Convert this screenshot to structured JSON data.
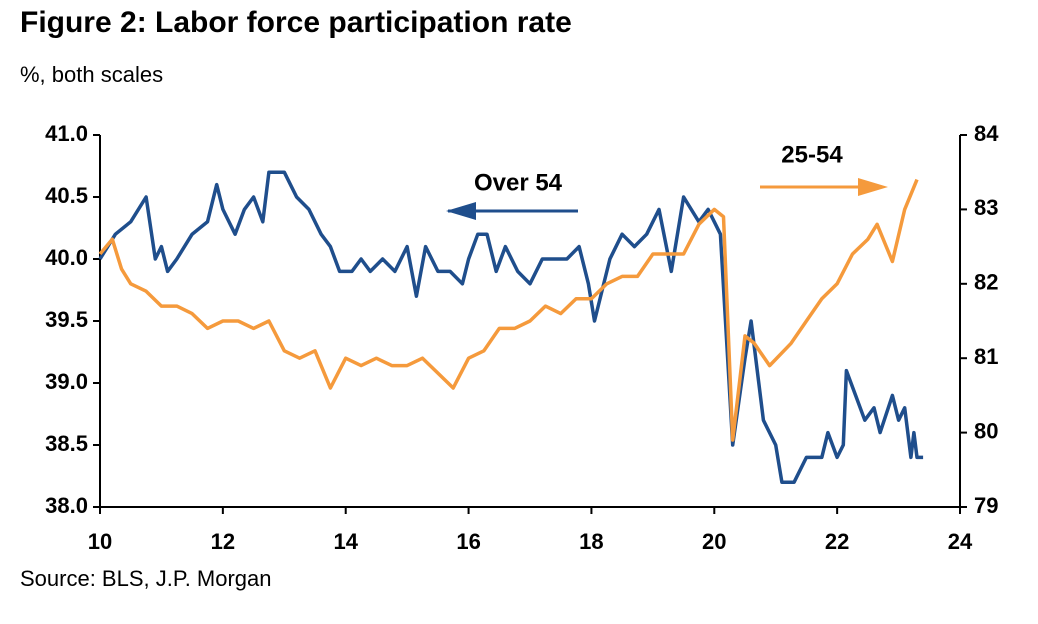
{
  "chart_data": {
    "type": "line",
    "title": "Figure 2: Labor force participation rate",
    "subtitle": "%, both scales",
    "source": "Source: BLS, J.P. Morgan",
    "xlim": [
      10,
      24
    ],
    "xticks": [
      10,
      12,
      14,
      16,
      18,
      20,
      22,
      24
    ],
    "ylim": [
      38,
      41
    ],
    "yticks": [
      {
        "value": 38,
        "label": "38.0"
      },
      {
        "value": 38.5,
        "label": "38.5"
      },
      {
        "value": 39,
        "label": "39.0"
      },
      {
        "value": 39.5,
        "label": "39.5"
      },
      {
        "value": 40,
        "label": "40.0"
      },
      {
        "value": 40.5,
        "label": "40.5"
      },
      {
        "value": 41,
        "label": "41.0"
      }
    ],
    "y2lim": [
      79,
      84
    ],
    "y2ticks": [
      79,
      80,
      81,
      82,
      83,
      84
    ],
    "series": [
      {
        "name": "Over 54",
        "color": "#1f4e8c",
        "x": [
          10.0,
          10.25,
          10.5,
          10.75,
          10.9,
          11.0,
          11.1,
          11.25,
          11.5,
          11.75,
          11.9,
          12.0,
          12.2,
          12.35,
          12.5,
          12.65,
          12.75,
          13.0,
          13.2,
          13.4,
          13.6,
          13.75,
          13.9,
          14.1,
          14.25,
          14.4,
          14.6,
          14.8,
          15.0,
          15.15,
          15.3,
          15.5,
          15.7,
          15.9,
          16.0,
          16.15,
          16.3,
          16.45,
          16.6,
          16.8,
          17.0,
          17.2,
          17.4,
          17.6,
          17.8,
          17.95,
          18.05,
          18.3,
          18.5,
          18.7,
          18.9,
          19.1,
          19.3,
          19.5,
          19.75,
          19.9,
          20.0,
          20.1,
          20.3,
          20.5,
          20.6,
          20.8,
          21.0,
          21.1,
          21.3,
          21.5,
          21.75,
          21.85,
          22.0,
          22.1,
          22.15,
          22.3,
          22.45,
          22.6,
          22.7,
          22.9,
          23.0,
          23.1,
          23.2,
          23.25,
          23.3,
          23.4
        ],
        "values": [
          40.0,
          40.2,
          40.3,
          40.5,
          40.0,
          40.1,
          39.9,
          40.0,
          40.2,
          40.3,
          40.6,
          40.4,
          40.2,
          40.4,
          40.5,
          40.3,
          40.7,
          40.7,
          40.5,
          40.4,
          40.2,
          40.1,
          39.9,
          39.9,
          40.0,
          39.9,
          40.0,
          39.9,
          40.1,
          39.7,
          40.1,
          39.9,
          39.9,
          39.8,
          40.0,
          40.2,
          40.2,
          39.9,
          40.1,
          39.9,
          39.8,
          40.0,
          40.0,
          40.0,
          40.1,
          39.8,
          39.5,
          40.0,
          40.2,
          40.1,
          40.2,
          40.4,
          39.9,
          40.5,
          40.3,
          40.4,
          40.3,
          40.2,
          38.5,
          39.2,
          39.5,
          38.7,
          38.5,
          38.2,
          38.2,
          38.4,
          38.4,
          38.6,
          38.4,
          38.5,
          39.1,
          38.9,
          38.7,
          38.8,
          38.6,
          38.9,
          38.7,
          38.8,
          38.4,
          38.6,
          38.4,
          38.4
        ]
      },
      {
        "name": "25-54",
        "color": "#f59a3c",
        "axis": "y2",
        "x": [
          10.0,
          10.2,
          10.35,
          10.5,
          10.75,
          11.0,
          11.25,
          11.5,
          11.75,
          12.0,
          12.25,
          12.5,
          12.75,
          13.0,
          13.25,
          13.5,
          13.75,
          14.0,
          14.25,
          14.5,
          14.75,
          15.0,
          15.25,
          15.5,
          15.75,
          16.0,
          16.25,
          16.5,
          16.75,
          17.0,
          17.25,
          17.5,
          17.75,
          18.0,
          18.25,
          18.5,
          18.75,
          19.0,
          19.25,
          19.5,
          19.75,
          20.0,
          20.15,
          20.3,
          20.5,
          20.65,
          20.9,
          21.25,
          21.5,
          21.75,
          22.0,
          22.25,
          22.5,
          22.65,
          22.9,
          23.1,
          23.3
        ],
        "values": [
          82.4,
          82.6,
          82.2,
          82.0,
          81.9,
          81.7,
          81.7,
          81.6,
          81.4,
          81.5,
          81.5,
          81.4,
          81.5,
          81.1,
          81.0,
          81.1,
          80.6,
          81.0,
          80.9,
          81.0,
          80.9,
          80.9,
          81.0,
          80.8,
          80.6,
          81.0,
          81.1,
          81.4,
          81.4,
          81.5,
          81.7,
          81.6,
          81.8,
          81.8,
          82.0,
          82.1,
          82.1,
          82.4,
          82.4,
          82.4,
          82.8,
          83.0,
          82.9,
          79.9,
          81.3,
          81.2,
          80.9,
          81.2,
          81.5,
          81.8,
          82.0,
          82.4,
          82.6,
          82.8,
          82.3,
          83.0,
          83.4
        ]
      }
    ]
  }
}
